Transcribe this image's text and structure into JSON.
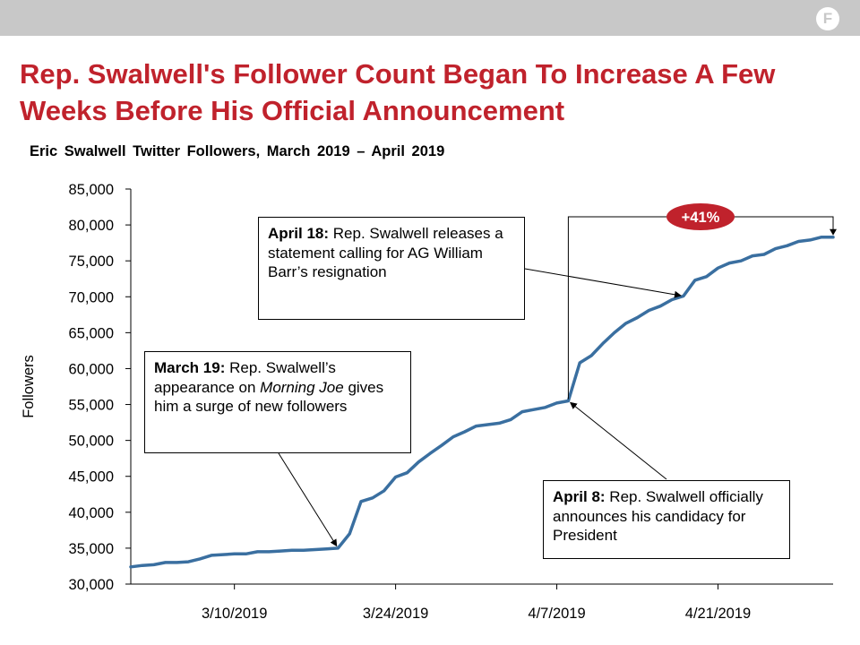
{
  "header": {
    "logo": "F"
  },
  "title": "Rep. Swalwell's Follower Count Began To Increase A Few Weeks Before His Official Announcement",
  "subtitle": "Eric Swalwell  Twitter  Followers,  March 2019 – April 2019",
  "annotations": {
    "barr": {
      "date": "April 18:",
      "text": " Rep. Swalwell releases a statement calling for AG William Barr’s resignation"
    },
    "joe": {
      "date": "March 19:",
      "text_before": " Rep. Swalwell’s appearance on ",
      "show": "Morning Joe",
      "text_after": " gives him a surge of new followers"
    },
    "announce": {
      "date": "April 8:",
      "text": " Rep. Swalwell officially announces his candidacy for President"
    }
  },
  "badge": "+41%",
  "colors": {
    "line": "#3a6fa0",
    "title": "#c0222c",
    "badge": "#c0222c",
    "topbar": "#c8c8c8"
  },
  "chart_data": {
    "type": "line",
    "title": "Eric Swalwell  Twitter  Followers,  March 2019 – April 2019",
    "xlabel": "",
    "ylabel": "Followers",
    "ylim": [
      30000,
      85000
    ],
    "yticks": [
      30000,
      35000,
      40000,
      45000,
      50000,
      55000,
      60000,
      65000,
      70000,
      75000,
      80000,
      85000
    ],
    "ytick_labels": [
      "30,000",
      "35,000",
      "40,000",
      "45,000",
      "50,000",
      "55,000",
      "60,000",
      "65,000",
      "70,000",
      "75,000",
      "80,000",
      "85,000"
    ],
    "xlim": [
      "2019-03-01",
      "2019-05-01"
    ],
    "xticks": [
      "2019-03-10",
      "2019-03-24",
      "2019-04-07",
      "2019-04-21"
    ],
    "xtick_labels": [
      "3/10/2019",
      "3/24/2019",
      "4/7/2019",
      "4/21/2019"
    ],
    "grid": false,
    "legend": "none",
    "series": [
      {
        "x": [
          "2019-03-01",
          "2019-03-02",
          "2019-03-03",
          "2019-03-04",
          "2019-03-05",
          "2019-03-06",
          "2019-03-07",
          "2019-03-08",
          "2019-03-09",
          "2019-03-10",
          "2019-03-11",
          "2019-03-12",
          "2019-03-13",
          "2019-03-14",
          "2019-03-15",
          "2019-03-16",
          "2019-03-17",
          "2019-03-18",
          "2019-03-19",
          "2019-03-20",
          "2019-03-21",
          "2019-03-22",
          "2019-03-23",
          "2019-03-24",
          "2019-03-25",
          "2019-03-26",
          "2019-03-27",
          "2019-03-28",
          "2019-03-29",
          "2019-03-30",
          "2019-03-31",
          "2019-04-01",
          "2019-04-02",
          "2019-04-03",
          "2019-04-04",
          "2019-04-05",
          "2019-04-06",
          "2019-04-07",
          "2019-04-08",
          "2019-04-09",
          "2019-04-10",
          "2019-04-11",
          "2019-04-12",
          "2019-04-13",
          "2019-04-14",
          "2019-04-15",
          "2019-04-16",
          "2019-04-17",
          "2019-04-18",
          "2019-04-19",
          "2019-04-20",
          "2019-04-21",
          "2019-04-22",
          "2019-04-23",
          "2019-04-24",
          "2019-04-25",
          "2019-04-26",
          "2019-04-27",
          "2019-04-28",
          "2019-04-29",
          "2019-04-30",
          "2019-05-01"
        ],
        "values": [
          32400,
          32600,
          32700,
          33000,
          33000,
          33100,
          33500,
          34000,
          34100,
          34200,
          34200,
          34500,
          34500,
          34600,
          34700,
          34700,
          34800,
          34900,
          35000,
          37000,
          41500,
          42000,
          43000,
          44900,
          45500,
          47000,
          48200,
          49300,
          50500,
          51200,
          52000,
          52200,
          52400,
          52900,
          54000,
          54300,
          54600,
          55200,
          55500,
          60800,
          61800,
          63500,
          65000,
          66300,
          67100,
          68100,
          68700,
          69600,
          70100,
          72300,
          72800,
          74000,
          74700,
          75000,
          75700,
          75900,
          76700,
          77100,
          77700,
          77900,
          78300,
          78300
        ]
      }
    ],
    "annotations": [
      {
        "x": "2019-03-19",
        "y": 35000,
        "label": "March 19: Rep. Swalwell’s appearance on Morning Joe gives him a surge of new followers"
      },
      {
        "x": "2019-04-08",
        "y": 55500,
        "label": "April 8: Rep. Swalwell officially announces his candidacy for President"
      },
      {
        "x": "2019-04-18",
        "y": 70100,
        "label": "April 18: Rep. Swalwell releases a statement calling for AG William Barr’s resignation"
      }
    ],
    "change_label": "+41%"
  }
}
